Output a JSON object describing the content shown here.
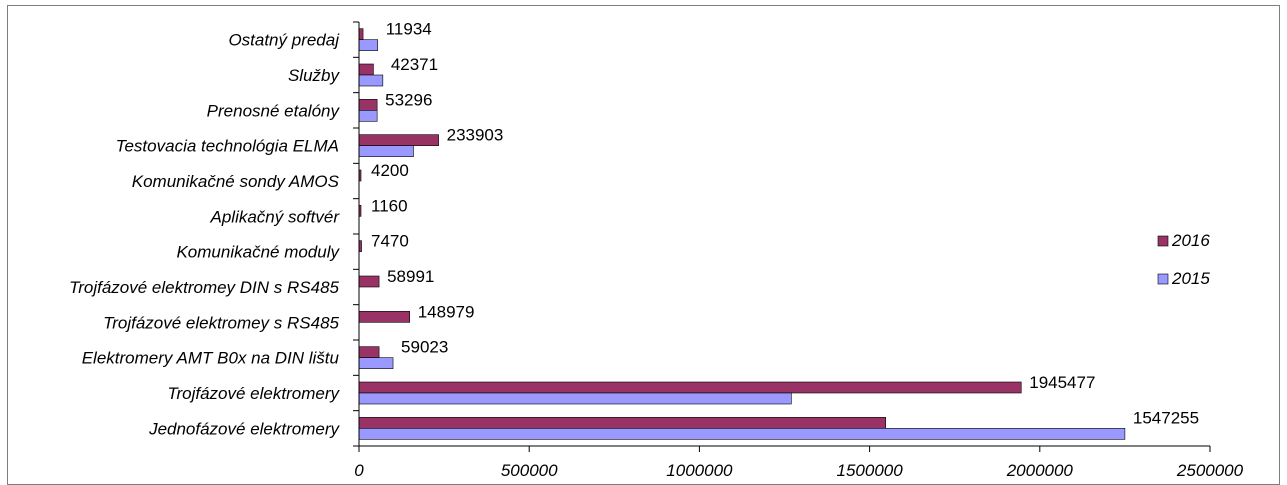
{
  "chart_data": {
    "type": "bar",
    "orientation": "horizontal",
    "categories": [
      "Ostatný predaj",
      "Služby",
      "Prenosné etalóny",
      "Testovacia technológia ELMA",
      "Komunikačné sondy AMOS",
      "Aplikačný softvér",
      "Komunikačné moduly",
      "Trojfázové elektromey DIN s RS485",
      "Trojfázové elektromey s RS485",
      "Elektromery AMT B0x na DIN lištu",
      "Trojfázové elektromery",
      "Jednofázové elektromery"
    ],
    "series": [
      {
        "name": "2016",
        "color": "#993366",
        "values": [
          11934,
          42371,
          53296,
          233903,
          4200,
          1160,
          7470,
          58991,
          148979,
          59023,
          1945477,
          1547255
        ]
      },
      {
        "name": "2015",
        "color": "#9999ff",
        "values": [
          55000,
          70000,
          53296,
          160000,
          0,
          0,
          0,
          0,
          0,
          100000,
          1270000,
          2250000
        ]
      }
    ],
    "data_labels": [
      "11934",
      "42371",
      "53296",
      "233903",
      "4200",
      "1160",
      "7470",
      "58991",
      "148979",
      "59023",
      "1945477",
      "1547255"
    ],
    "x_ticks": [
      "0",
      "500000",
      "1000000",
      "1500000",
      "2000000",
      "2500000"
    ],
    "xlim": [
      0,
      2500000
    ],
    "legend_position": "right",
    "grid": false
  }
}
